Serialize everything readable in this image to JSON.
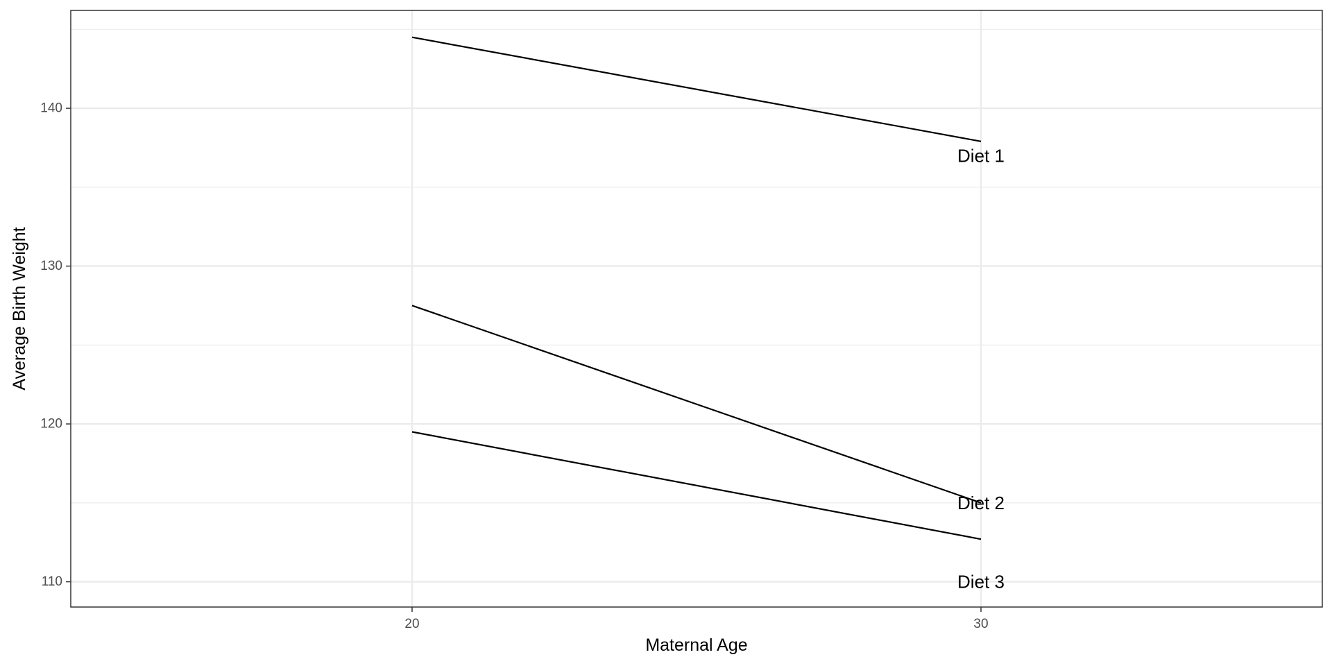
{
  "chart_data": {
    "type": "line",
    "title": "",
    "xlabel": "Maternal Age",
    "ylabel": "Average Birth Weight",
    "x": [
      20,
      30
    ],
    "x_ticks": [
      "20",
      "30"
    ],
    "xlim": [
      14,
      36
    ],
    "y_ticks": [
      "110",
      "120",
      "130",
      "140"
    ],
    "ylim": [
      108.4,
      146.2
    ],
    "grid": true,
    "legend": "none",
    "series": [
      {
        "name": "Diet 1",
        "values": [
          144.5,
          137.9
        ]
      },
      {
        "name": "Diet 2",
        "values": [
          127.5,
          115.0
        ]
      },
      {
        "name": "Diet 3",
        "values": [
          119.5,
          112.7
        ]
      }
    ],
    "annotations": [
      {
        "text": "Diet 1",
        "x": 30,
        "y": 137
      },
      {
        "text": "Diet 2",
        "x": 30,
        "y": 115
      },
      {
        "text": "Diet 3",
        "x": 30,
        "y": 110
      }
    ],
    "colors": {
      "line": "#000000",
      "grid": "#ebebeb",
      "panel_border": "#333333",
      "tick_text": "#4d4d4d"
    }
  }
}
